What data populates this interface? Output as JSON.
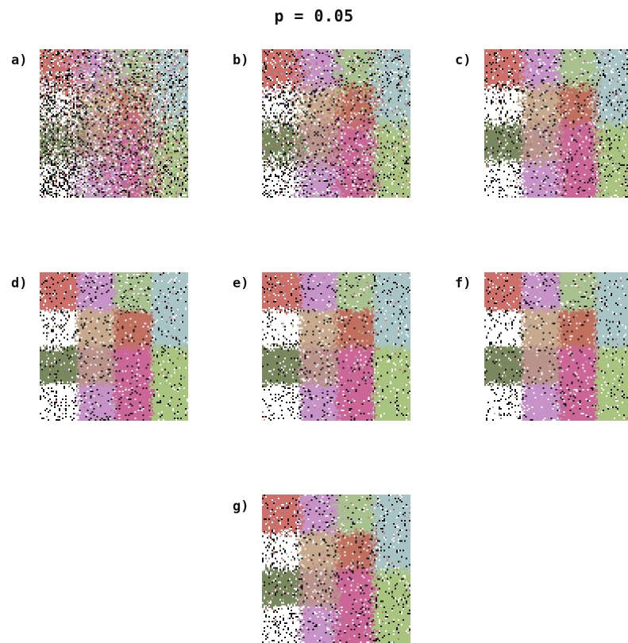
{
  "figure": {
    "title": "p = 0.05"
  },
  "panels": [
    {
      "label": "a)",
      "noise": 0.34,
      "blur": 0.9
    },
    {
      "label": "b)",
      "noise": 0.22,
      "blur": 0.55
    },
    {
      "label": "c)",
      "noise": 0.18,
      "blur": 0.35
    },
    {
      "label": "d)",
      "noise": 0.15,
      "blur": 0.2
    },
    {
      "label": "e)",
      "noise": 0.15,
      "blur": 0.22
    },
    {
      "label": "f)",
      "noise": 0.14,
      "blur": 0.18
    },
    {
      "label": "g)",
      "noise": 0.17,
      "blur": 0.3
    }
  ],
  "palette": {
    "red": "#cf6f6a",
    "lilac": "#c792c7",
    "sage": "#a9c08f",
    "blue_grey": "#a9c4c6",
    "white": "#ffffff",
    "tan": "#c7aa8e",
    "brown_red": "#c1705f",
    "olive": "#79875e",
    "speckle": "#b9938c",
    "pink": "#cc6699",
    "light_green": "#a8c47f",
    "steel": "#6f86a8",
    "black_dot": "#111111"
  }
}
